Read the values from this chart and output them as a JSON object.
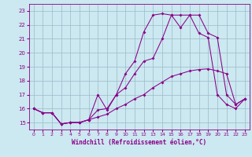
{
  "x": [
    0,
    1,
    2,
    3,
    4,
    5,
    6,
    7,
    8,
    9,
    10,
    11,
    12,
    13,
    14,
    15,
    16,
    17,
    18,
    19,
    20,
    21,
    22,
    23
  ],
  "line_bottom": [
    16.0,
    15.7,
    15.7,
    14.9,
    15.0,
    15.0,
    15.2,
    15.4,
    15.6,
    16.0,
    16.3,
    16.7,
    17.0,
    17.5,
    17.9,
    18.3,
    18.5,
    18.7,
    18.8,
    18.85,
    18.7,
    18.5,
    16.3,
    16.7
  ],
  "line_mid": [
    16.0,
    15.7,
    15.7,
    14.9,
    15.0,
    15.0,
    15.2,
    15.9,
    16.0,
    17.0,
    17.5,
    18.5,
    19.4,
    19.6,
    21.0,
    22.7,
    21.8,
    22.7,
    22.7,
    21.4,
    21.1,
    17.0,
    16.3,
    16.7
  ],
  "line_top": [
    16.0,
    15.7,
    15.7,
    14.9,
    15.0,
    15.0,
    15.2,
    17.0,
    15.9,
    17.0,
    18.5,
    19.4,
    21.5,
    22.7,
    22.8,
    22.7,
    22.7,
    22.7,
    21.4,
    21.1,
    17.0,
    16.3,
    16.0,
    16.7
  ],
  "bg_color": "#cce8f0",
  "line_color": "#880088",
  "grid_color": "#99bbcc",
  "xlabel": "Windchill (Refroidissement éolien,°C)",
  "ylim": [
    14.5,
    23.5
  ],
  "xlim": [
    -0.5,
    23.5
  ],
  "yticks": [
    15,
    16,
    17,
    18,
    19,
    20,
    21,
    22,
    23
  ],
  "xticks": [
    0,
    1,
    2,
    3,
    4,
    5,
    6,
    7,
    8,
    9,
    10,
    11,
    12,
    13,
    14,
    15,
    16,
    17,
    18,
    19,
    20,
    21,
    22,
    23
  ]
}
